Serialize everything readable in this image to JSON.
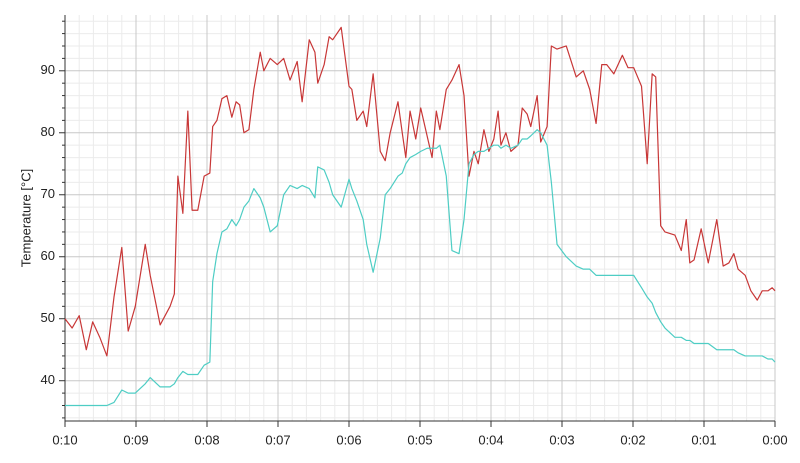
{
  "chart_data": {
    "type": "line",
    "y_label": "Temperature [°C]",
    "x": [
      10.0,
      9.9,
      9.8,
      9.7,
      9.61,
      9.51,
      9.41,
      9.31,
      9.2,
      9.11,
      9.01,
      8.87,
      8.8,
      8.66,
      8.52,
      8.46,
      8.41,
      8.34,
      8.27,
      8.21,
      8.13,
      8.04,
      7.96,
      7.92,
      7.86,
      7.79,
      7.72,
      7.65,
      7.59,
      7.54,
      7.48,
      7.41,
      7.34,
      7.25,
      7.2,
      7.11,
      7.01,
      6.92,
      6.83,
      6.73,
      6.66,
      6.56,
      6.48,
      6.44,
      6.35,
      6.28,
      6.23,
      6.11,
      6.0,
      5.96,
      5.89,
      5.8,
      5.75,
      5.66,
      5.56,
      5.49,
      5.42,
      5.31,
      5.25,
      5.2,
      5.14,
      5.06,
      4.99,
      4.9,
      4.83,
      4.77,
      4.72,
      4.63,
      4.55,
      4.45,
      4.38,
      4.31,
      4.24,
      4.18,
      4.1,
      4.03,
      3.96,
      3.9,
      3.86,
      3.79,
      3.72,
      3.62,
      3.56,
      3.49,
      3.44,
      3.35,
      3.3,
      3.21,
      3.15,
      3.07,
      2.94,
      2.8,
      2.7,
      2.61,
      2.52,
      2.44,
      2.37,
      2.27,
      2.15,
      2.07,
      1.99,
      1.88,
      1.8,
      1.73,
      1.68,
      1.61,
      1.55,
      1.41,
      1.32,
      1.25,
      1.2,
      1.14,
      1.04,
      0.94,
      0.82,
      0.73,
      0.65,
      0.58,
      0.52,
      0.42,
      0.34,
      0.25,
      0.18,
      0.1,
      0.04,
      0.0
    ],
    "series": [
      {
        "color": "#c83737",
        "values": [
          50,
          48.5,
          50.5,
          45,
          49.5,
          47,
          44,
          53.5,
          61.5,
          48,
          52,
          62,
          57,
          49,
          52,
          54,
          73,
          67,
          83.5,
          67.5,
          67.5,
          73,
          73.5,
          81,
          82,
          85.5,
          86,
          82.5,
          85,
          84.5,
          80,
          80.5,
          87,
          93,
          90,
          92,
          91,
          92,
          88.5,
          91.5,
          85,
          95,
          93,
          88,
          91,
          95.5,
          95,
          97,
          87.5,
          87,
          82,
          83.5,
          81,
          89.5,
          77,
          75.5,
          80,
          85,
          80,
          76,
          83.5,
          79,
          84,
          79.5,
          76,
          83.5,
          80.5,
          87,
          88.5,
          91,
          86,
          73,
          77,
          75,
          80.5,
          77,
          79,
          83.5,
          78,
          80,
          77,
          78,
          84,
          83,
          81,
          86,
          78.5,
          81,
          94,
          93.5,
          94,
          89,
          90,
          87,
          81.5,
          91,
          91,
          89.5,
          92.5,
          90.5,
          90.5,
          87.5,
          75,
          89.5,
          89,
          65,
          64,
          63.5,
          61,
          66,
          59,
          59.5,
          64.5,
          59,
          66,
          58.5,
          59,
          60.5,
          58,
          57,
          54.5,
          53,
          54.5,
          54.5,
          55,
          54.5
        ]
      },
      {
        "color": "#4ecdc4",
        "values": [
          36,
          36,
          36,
          36,
          36,
          36,
          36,
          36.5,
          38.5,
          38,
          38,
          39.5,
          40.5,
          39,
          39,
          39.5,
          40.5,
          41.5,
          41,
          41,
          41,
          42.5,
          43,
          56,
          60.5,
          64,
          64.5,
          66,
          65,
          66,
          68,
          69,
          71,
          69.5,
          68,
          64,
          65,
          70,
          71.5,
          71,
          71.5,
          71,
          69.5,
          74.5,
          74,
          72,
          70,
          68,
          72.5,
          71,
          69,
          66,
          62,
          57.5,
          63,
          70,
          71,
          73,
          73.5,
          75,
          76,
          76.5,
          77,
          77.5,
          77.5,
          77.5,
          78,
          73,
          61,
          60.5,
          66,
          75,
          76.5,
          77,
          77,
          77.5,
          78,
          78,
          77.5,
          78,
          77.5,
          78,
          79,
          79,
          79.5,
          80.5,
          80,
          78,
          72,
          62,
          60,
          58.5,
          58,
          58,
          57,
          57,
          57,
          57,
          57,
          57,
          57,
          55,
          53.5,
          52.5,
          51,
          49.5,
          48.5,
          47,
          47,
          46.5,
          46.5,
          46,
          46,
          46,
          45,
          45,
          45,
          45,
          44.5,
          44,
          44,
          44,
          44,
          43.5,
          43.5,
          43
        ]
      }
    ],
    "xlim": [
      10,
      0
    ],
    "xticks": [
      {
        "value": 10,
        "label": "0:10"
      },
      {
        "value": 9,
        "label": "0:09"
      },
      {
        "value": 8,
        "label": "0:08"
      },
      {
        "value": 7,
        "label": "0:07"
      },
      {
        "value": 6,
        "label": "0:06"
      },
      {
        "value": 5,
        "label": "0:05"
      },
      {
        "value": 4,
        "label": "0:04"
      },
      {
        "value": 3,
        "label": "0:03"
      },
      {
        "value": 2,
        "label": "0:02"
      },
      {
        "value": 1,
        "label": "0:01"
      },
      {
        "value": 0,
        "label": "0:00"
      }
    ],
    "ylim": [
      33.5,
      99
    ],
    "yticks": [
      40,
      50,
      60,
      70,
      80,
      90
    ],
    "grid": true,
    "minor_grid": true
  }
}
